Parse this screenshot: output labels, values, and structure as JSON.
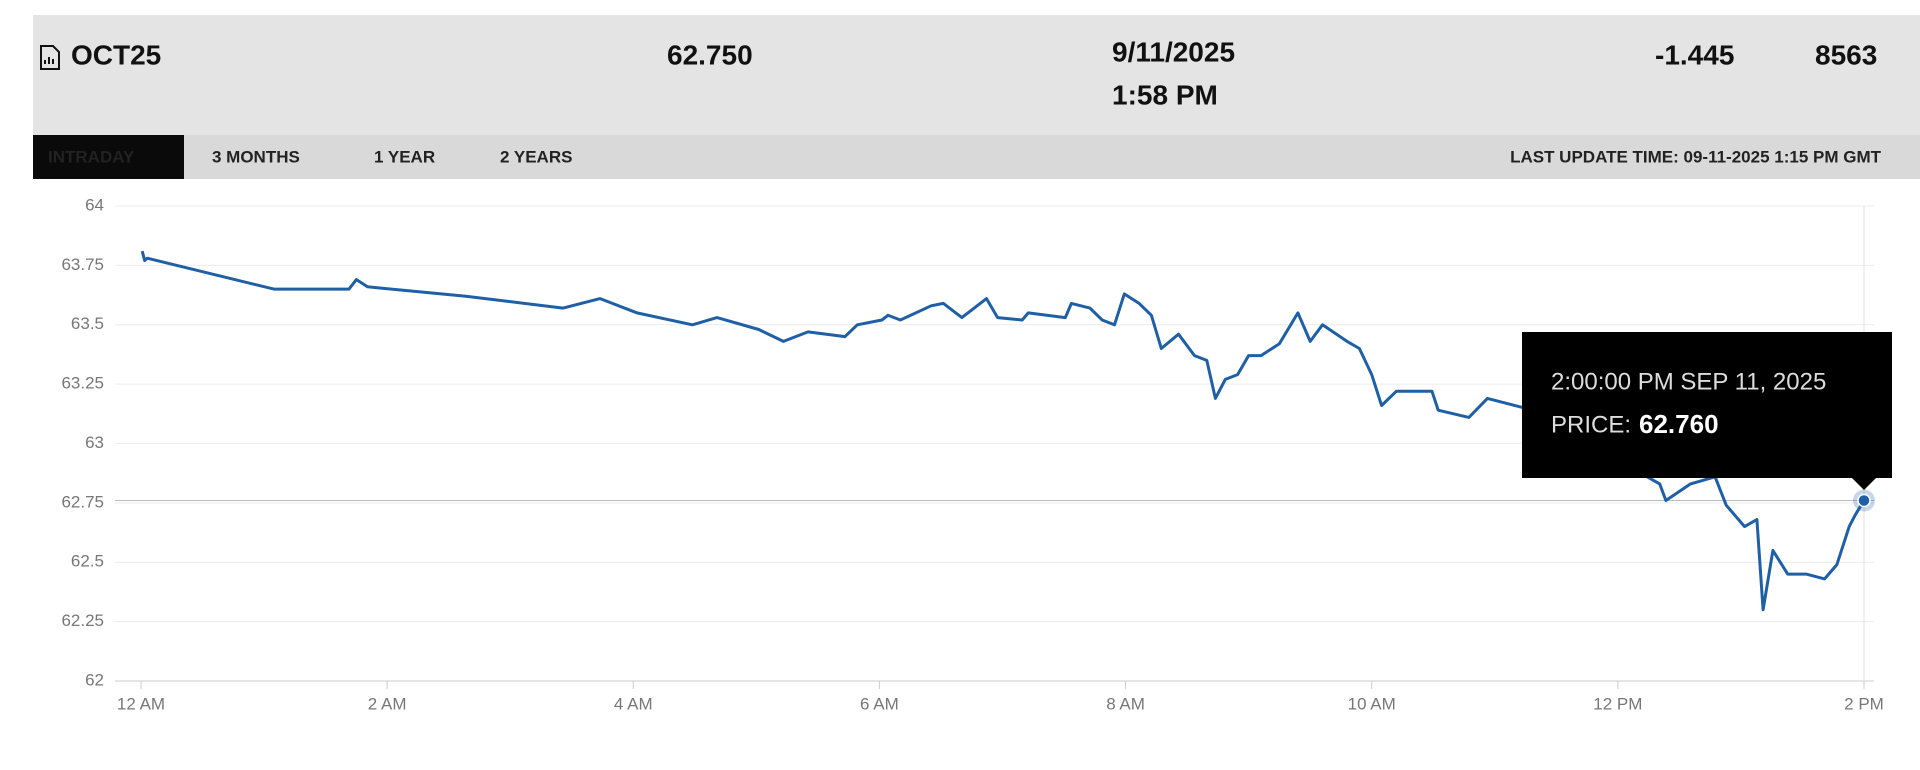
{
  "header": {
    "symbol": "OCT25",
    "price": "62.750",
    "date": "9/11/2025",
    "time": "1:58 PM",
    "change": "-1.445",
    "volume": "8563"
  },
  "tabs": [
    "INTRADAY",
    "3 MONTHS",
    "1 YEAR",
    "2 YEARS"
  ],
  "active_tab": "INTRADAY",
  "last_update": "LAST UPDATE TIME: 09-11-2025 1:15 PM GMT",
  "chart_data": {
    "type": "line",
    "grid": true,
    "x": [
      0.01,
      0.03,
      0.05,
      1.08,
      1.44,
      1.69,
      1.75,
      1.84,
      2.64,
      3.43,
      3.73,
      4.03,
      4.48,
      4.68,
      5.02,
      5.22,
      5.42,
      5.72,
      5.82,
      6.02,
      6.07,
      6.17,
      6.42,
      6.52,
      6.67,
      6.87,
      6.96,
      7.16,
      7.21,
      7.51,
      7.56,
      7.71,
      7.81,
      7.91,
      7.99,
      8.11,
      8.21,
      8.29,
      8.43,
      8.56,
      8.66,
      8.73,
      8.81,
      8.91,
      9.0,
      9.1,
      9.25,
      9.4,
      9.5,
      9.6,
      9.8,
      9.9,
      10.0,
      10.08,
      10.2,
      10.25,
      10.49,
      10.54,
      10.79,
      10.94,
      11.24,
      12.34,
      12.39,
      12.59,
      12.79,
      12.88,
      13.03,
      13.13,
      13.18,
      13.26,
      13.38,
      13.53,
      13.68,
      13.78,
      13.88,
      13.93,
      14.0
    ],
    "series": [
      {
        "name": "PRICE",
        "color": "#1f5fa6",
        "values": [
          63.81,
          63.77,
          63.78,
          63.65,
          63.65,
          63.65,
          63.69,
          63.66,
          63.62,
          63.57,
          63.61,
          63.55,
          63.5,
          63.53,
          63.48,
          63.43,
          63.47,
          63.45,
          63.5,
          63.52,
          63.54,
          63.52,
          63.58,
          63.59,
          63.53,
          63.61,
          63.53,
          63.52,
          63.55,
          63.53,
          63.59,
          63.57,
          63.52,
          63.5,
          63.63,
          63.59,
          63.54,
          63.4,
          63.46,
          63.37,
          63.35,
          63.19,
          63.27,
          63.29,
          63.37,
          63.37,
          63.42,
          63.55,
          63.43,
          63.5,
          63.43,
          63.4,
          63.29,
          63.16,
          63.22,
          63.22,
          63.22,
          63.14,
          63.11,
          63.19,
          63.15,
          62.83,
          62.76,
          62.83,
          62.86,
          62.74,
          62.65,
          62.68,
          62.3,
          62.55,
          62.45,
          62.45,
          62.43,
          62.49,
          62.65,
          62.7,
          62.76
        ]
      }
    ],
    "xlim": [
      0,
      14
    ],
    "xticks": [
      {
        "value": 0,
        "label": "12 AM"
      },
      {
        "value": 2,
        "label": "2 AM"
      },
      {
        "value": 4,
        "label": "4 AM"
      },
      {
        "value": 6,
        "label": "6 AM"
      },
      {
        "value": 8,
        "label": "8 AM"
      },
      {
        "value": 10,
        "label": "10 AM"
      },
      {
        "value": 12,
        "label": "12 PM"
      },
      {
        "value": 14,
        "label": "2 PM"
      }
    ],
    "ylim": [
      62,
      64
    ],
    "yticks": [
      62,
      62.25,
      62.5,
      62.75,
      63,
      63.25,
      63.5,
      63.75,
      64
    ],
    "tooltip": {
      "time": "2:00:00 PM SEP 11, 2025",
      "label": "PRICE:",
      "x": 14,
      "value": 62.76,
      "value_label": "62.760"
    }
  }
}
